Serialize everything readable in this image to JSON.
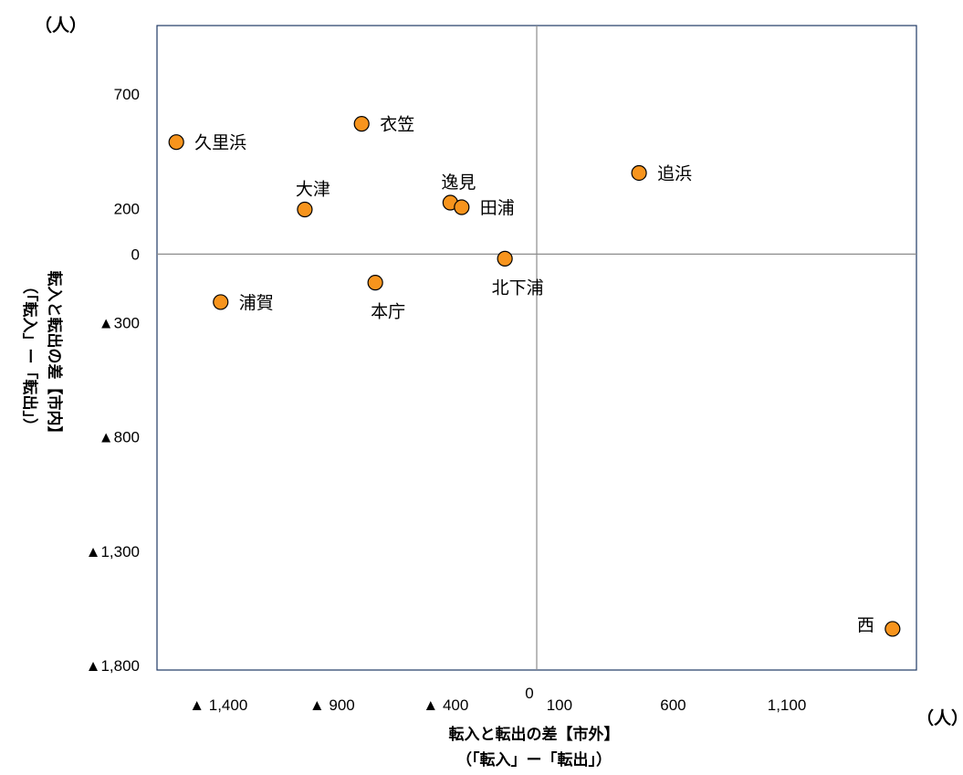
{
  "chart_data": {
    "type": "scatter",
    "title": "",
    "x_unit_label": "（人）",
    "y_unit_label": "（人）",
    "xlabel_line1": "転入と転出の差【市外】",
    "xlabel_line2": "（「転入」ー「転出」）",
    "ylabel_line1": "転入と転出の差【市内】",
    "ylabel_line2": "（「転入」ー「転出」）",
    "xlim": [
      -1670,
      1670
    ],
    "ylim": [
      -1820,
      1000
    ],
    "grid": false,
    "zero_lines": true,
    "x_ticks": [
      {
        "value": -1400,
        "label": "▲ 1,400"
      },
      {
        "value": -900,
        "label": "▲ 900"
      },
      {
        "value": -400,
        "label": "▲ 400"
      },
      {
        "value": 0,
        "label": "0"
      },
      {
        "value": 100,
        "label": "100"
      },
      {
        "value": 600,
        "label": "600"
      },
      {
        "value": 1100,
        "label": "1,100"
      }
    ],
    "y_ticks": [
      {
        "value": 700,
        "label": "700"
      },
      {
        "value": 200,
        "label": "200"
      },
      {
        "value": 0,
        "label": "0"
      },
      {
        "value": -300,
        "label": "▲300"
      },
      {
        "value": -800,
        "label": "▲800"
      },
      {
        "value": -1300,
        "label": "▲1,300"
      },
      {
        "value": -1800,
        "label": "▲1,800"
      }
    ],
    "marker_color": "#F7941D",
    "marker_edge_color": "#000000",
    "points": [
      {
        "name": "久里浜",
        "x": -1585,
        "y": 490,
        "label_pos": "right"
      },
      {
        "name": "衣笠",
        "x": -770,
        "y": 570,
        "label_pos": "right"
      },
      {
        "name": "追浜",
        "x": 450,
        "y": 355,
        "label_pos": "right"
      },
      {
        "name": "大津",
        "x": -1020,
        "y": 195,
        "label_pos": "above"
      },
      {
        "name": "逸見",
        "x": -380,
        "y": 225,
        "label_pos": "above"
      },
      {
        "name": "田浦",
        "x": -330,
        "y": 205,
        "label_pos": "right"
      },
      {
        "name": "北下浦",
        "x": -140,
        "y": -20,
        "label_pos": "below"
      },
      {
        "name": "本庁",
        "x": -710,
        "y": -125,
        "label_pos": "below"
      },
      {
        "name": "浦賀",
        "x": -1390,
        "y": -210,
        "label_pos": "right"
      },
      {
        "name": "西",
        "x": 1565,
        "y": -1640,
        "label_pos": "left"
      }
    ]
  }
}
